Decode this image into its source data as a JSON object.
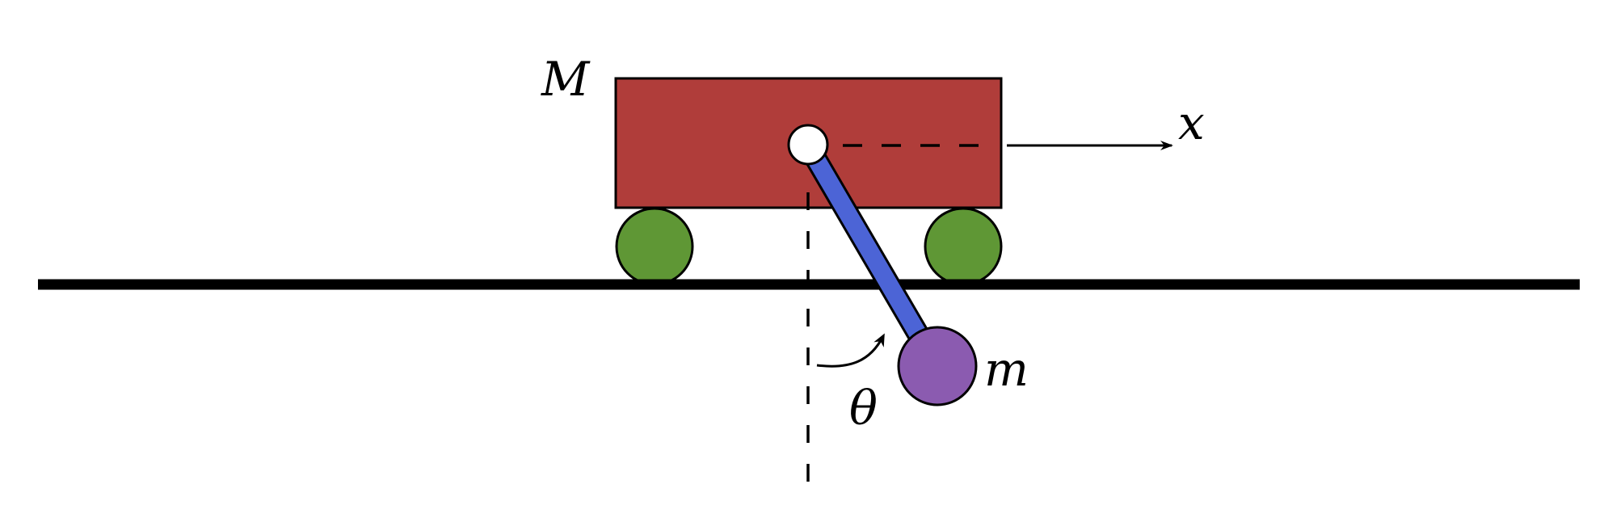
{
  "labels": {
    "cart_mass": "M",
    "pendulum_mass": "m",
    "position": "x",
    "angle": "θ"
  },
  "colors": {
    "cart": "#b03d3a",
    "wheels": "#5f9735",
    "rod": "#4c64d6",
    "bob": "#8b5bb0",
    "pivot": "#ffffff",
    "ground": "#000000",
    "stroke": "#000000"
  }
}
